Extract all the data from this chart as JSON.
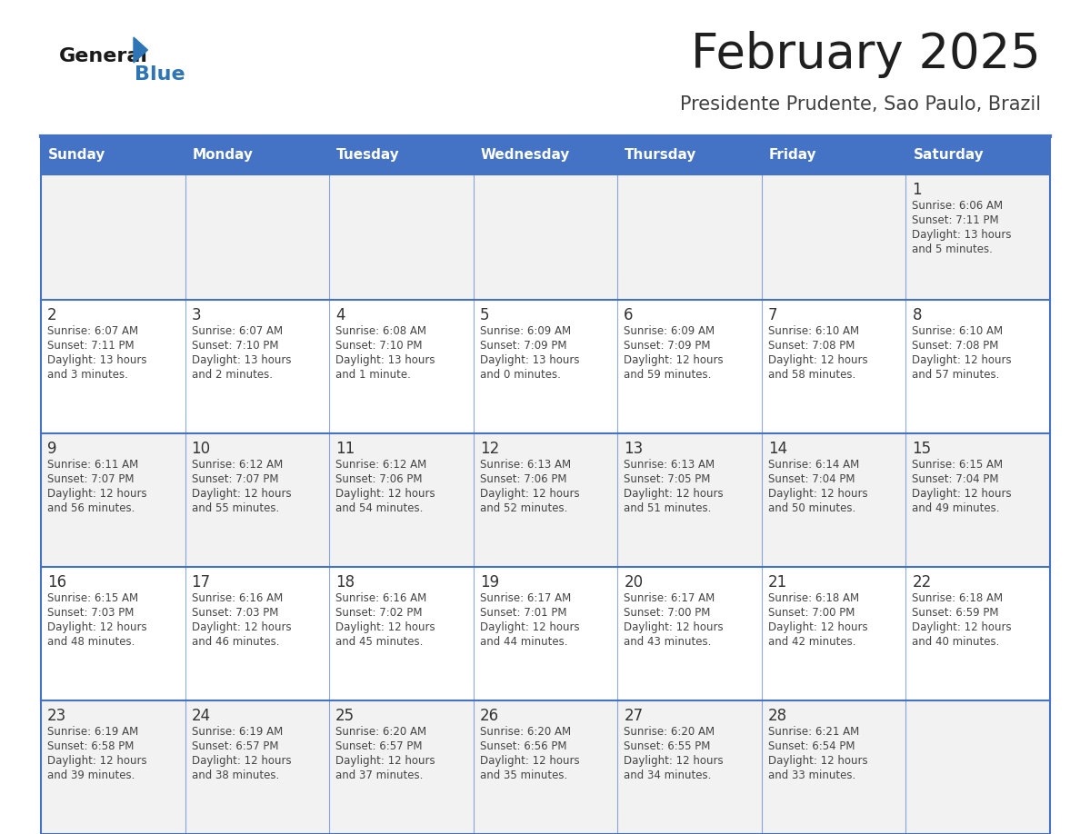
{
  "title": "February 2025",
  "subtitle": "Presidente Prudente, Sao Paulo, Brazil",
  "header_bg": "#4472C4",
  "header_text": "#FFFFFF",
  "cell_bg_row0": "#F2F2F2",
  "cell_bg_row1": "#FFFFFF",
  "cell_bg_row2": "#F2F2F2",
  "cell_bg_row3": "#FFFFFF",
  "cell_bg_row4": "#F2F2F2",
  "border_color": "#4472C4",
  "day_names": [
    "Sunday",
    "Monday",
    "Tuesday",
    "Wednesday",
    "Thursday",
    "Friday",
    "Saturday"
  ],
  "title_color": "#1F1F1F",
  "subtitle_color": "#404040",
  "day_number_color": "#333333",
  "info_color": "#444444",
  "logo_general_color": "#1a1a1a",
  "logo_blue_color": "#2E75B6",
  "calendar_data": [
    [
      null,
      null,
      null,
      null,
      null,
      null,
      {
        "day": 1,
        "sunrise": "6:06 AM",
        "sunset": "7:11 PM",
        "daylight_hours": 13,
        "daylight_minutes": 5
      }
    ],
    [
      {
        "day": 2,
        "sunrise": "6:07 AM",
        "sunset": "7:11 PM",
        "daylight_hours": 13,
        "daylight_minutes": 3
      },
      {
        "day": 3,
        "sunrise": "6:07 AM",
        "sunset": "7:10 PM",
        "daylight_hours": 13,
        "daylight_minutes": 2
      },
      {
        "day": 4,
        "sunrise": "6:08 AM",
        "sunset": "7:10 PM",
        "daylight_hours": 13,
        "daylight_minutes": 1
      },
      {
        "day": 5,
        "sunrise": "6:09 AM",
        "sunset": "7:09 PM",
        "daylight_hours": 13,
        "daylight_minutes": 0
      },
      {
        "day": 6,
        "sunrise": "6:09 AM",
        "sunset": "7:09 PM",
        "daylight_hours": 12,
        "daylight_minutes": 59
      },
      {
        "day": 7,
        "sunrise": "6:10 AM",
        "sunset": "7:08 PM",
        "daylight_hours": 12,
        "daylight_minutes": 58
      },
      {
        "day": 8,
        "sunrise": "6:10 AM",
        "sunset": "7:08 PM",
        "daylight_hours": 12,
        "daylight_minutes": 57
      }
    ],
    [
      {
        "day": 9,
        "sunrise": "6:11 AM",
        "sunset": "7:07 PM",
        "daylight_hours": 12,
        "daylight_minutes": 56
      },
      {
        "day": 10,
        "sunrise": "6:12 AM",
        "sunset": "7:07 PM",
        "daylight_hours": 12,
        "daylight_minutes": 55
      },
      {
        "day": 11,
        "sunrise": "6:12 AM",
        "sunset": "7:06 PM",
        "daylight_hours": 12,
        "daylight_minutes": 54
      },
      {
        "day": 12,
        "sunrise": "6:13 AM",
        "sunset": "7:06 PM",
        "daylight_hours": 12,
        "daylight_minutes": 52
      },
      {
        "day": 13,
        "sunrise": "6:13 AM",
        "sunset": "7:05 PM",
        "daylight_hours": 12,
        "daylight_minutes": 51
      },
      {
        "day": 14,
        "sunrise": "6:14 AM",
        "sunset": "7:04 PM",
        "daylight_hours": 12,
        "daylight_minutes": 50
      },
      {
        "day": 15,
        "sunrise": "6:15 AM",
        "sunset": "7:04 PM",
        "daylight_hours": 12,
        "daylight_minutes": 49
      }
    ],
    [
      {
        "day": 16,
        "sunrise": "6:15 AM",
        "sunset": "7:03 PM",
        "daylight_hours": 12,
        "daylight_minutes": 48
      },
      {
        "day": 17,
        "sunrise": "6:16 AM",
        "sunset": "7:03 PM",
        "daylight_hours": 12,
        "daylight_minutes": 46
      },
      {
        "day": 18,
        "sunrise": "6:16 AM",
        "sunset": "7:02 PM",
        "daylight_hours": 12,
        "daylight_minutes": 45
      },
      {
        "day": 19,
        "sunrise": "6:17 AM",
        "sunset": "7:01 PM",
        "daylight_hours": 12,
        "daylight_minutes": 44
      },
      {
        "day": 20,
        "sunrise": "6:17 AM",
        "sunset": "7:00 PM",
        "daylight_hours": 12,
        "daylight_minutes": 43
      },
      {
        "day": 21,
        "sunrise": "6:18 AM",
        "sunset": "7:00 PM",
        "daylight_hours": 12,
        "daylight_minutes": 42
      },
      {
        "day": 22,
        "sunrise": "6:18 AM",
        "sunset": "6:59 PM",
        "daylight_hours": 12,
        "daylight_minutes": 40
      }
    ],
    [
      {
        "day": 23,
        "sunrise": "6:19 AM",
        "sunset": "6:58 PM",
        "daylight_hours": 12,
        "daylight_minutes": 39
      },
      {
        "day": 24,
        "sunrise": "6:19 AM",
        "sunset": "6:57 PM",
        "daylight_hours": 12,
        "daylight_minutes": 38
      },
      {
        "day": 25,
        "sunrise": "6:20 AM",
        "sunset": "6:57 PM",
        "daylight_hours": 12,
        "daylight_minutes": 37
      },
      {
        "day": 26,
        "sunrise": "6:20 AM",
        "sunset": "6:56 PM",
        "daylight_hours": 12,
        "daylight_minutes": 35
      },
      {
        "day": 27,
        "sunrise": "6:20 AM",
        "sunset": "6:55 PM",
        "daylight_hours": 12,
        "daylight_minutes": 34
      },
      {
        "day": 28,
        "sunrise": "6:21 AM",
        "sunset": "6:54 PM",
        "daylight_hours": 12,
        "daylight_minutes": 33
      },
      null
    ]
  ],
  "row_bg_colors": [
    "#F2F2F2",
    "#FFFFFF",
    "#F2F2F2",
    "#FFFFFF",
    "#F2F2F2"
  ]
}
